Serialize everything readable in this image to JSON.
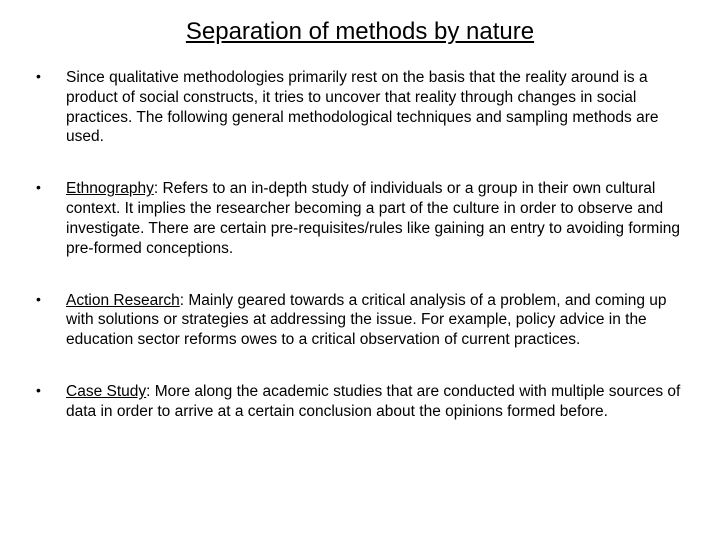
{
  "title": "Separation of methods by nature",
  "items": [
    {
      "term": "",
      "text": "Since qualitative methodologies primarily rest on the basis that the reality around is a product of social constructs, it tries to uncover that reality through changes in social practices. The following general methodological techniques and sampling methods are used."
    },
    {
      "term": "Ethnography",
      "text": ":  Refers to an in-depth study of individuals or a group in their own cultural context. It implies the researcher becoming a part of the culture in order to observe and investigate. There are certain pre-requisites/rules like gaining an entry to avoiding forming pre-formed conceptions."
    },
    {
      "term": "Action Research",
      "text": ":  Mainly geared towards a critical analysis of a problem, and coming up with solutions or strategies at addressing the issue. For example, policy advice in the education sector reforms owes to a critical observation of current practices."
    },
    {
      "term": "Case Study",
      "text": ": More along the academic studies that are conducted with multiple sources of data in order to arrive at a certain conclusion about the opinions formed before."
    }
  ],
  "colors": {
    "background": "#ffffff",
    "text": "#000000"
  },
  "typography": {
    "title_fontsize": 24,
    "body_fontsize": 15.5,
    "font_family": "Arial"
  }
}
